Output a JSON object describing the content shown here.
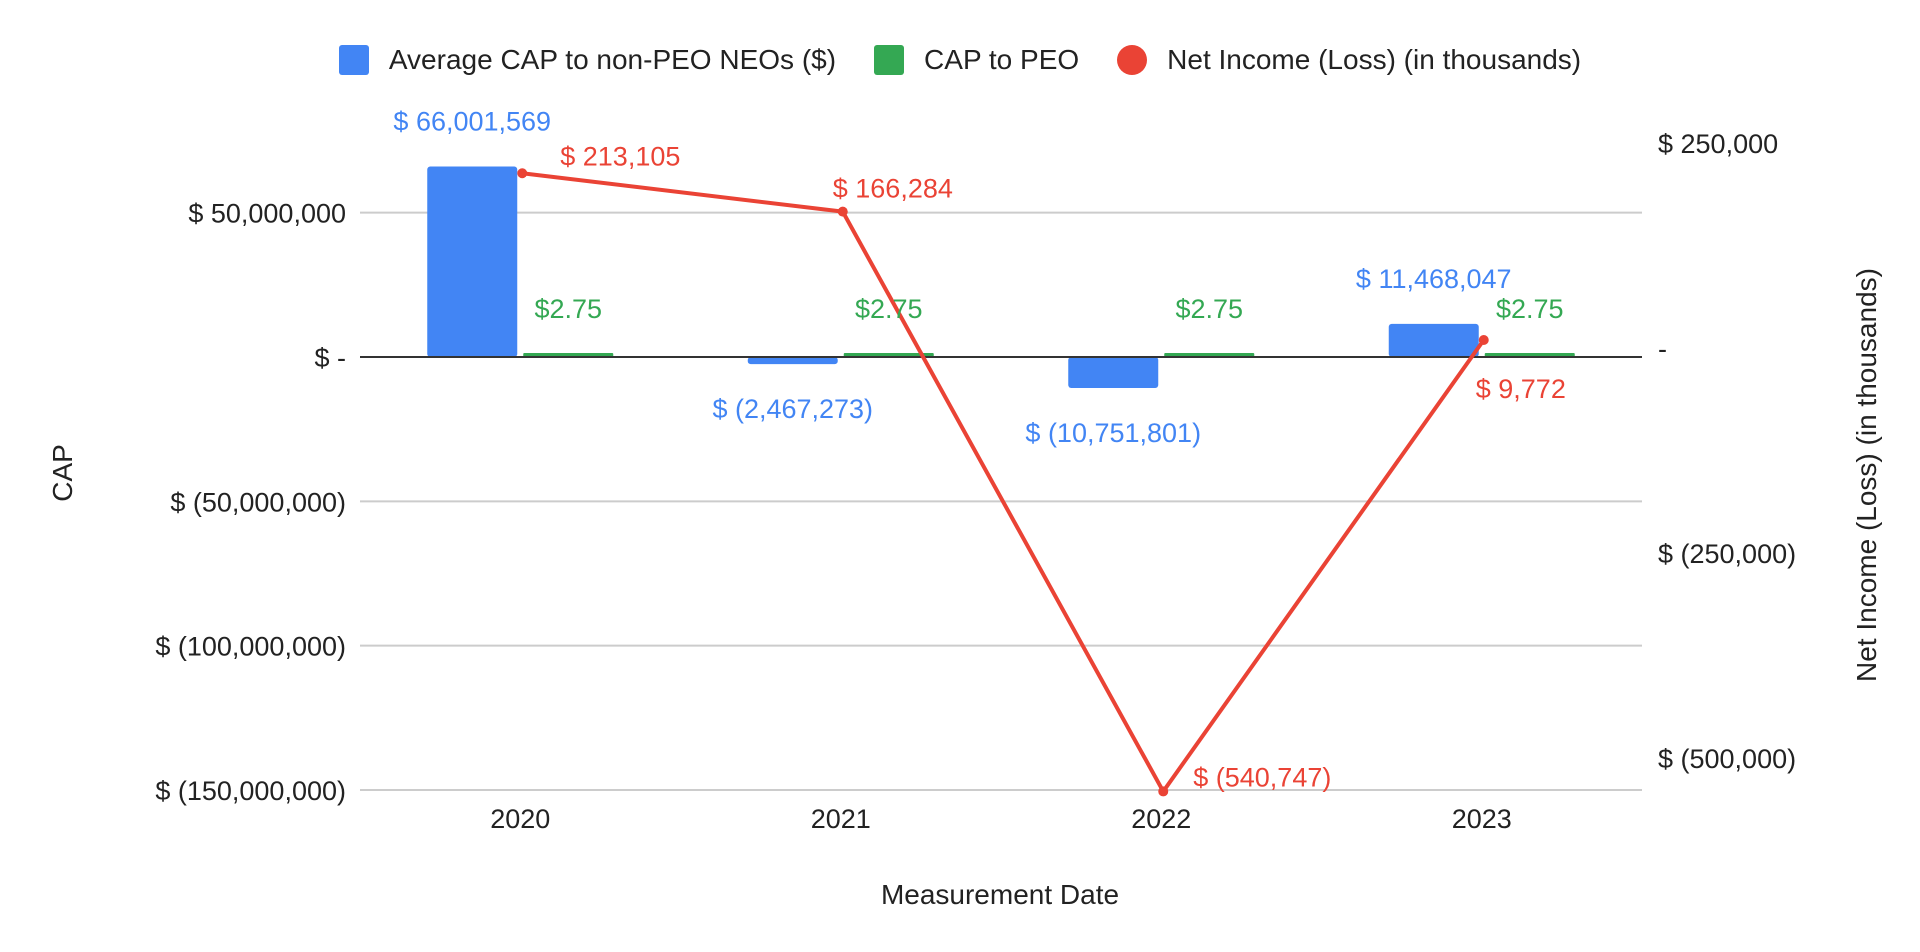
{
  "chart_data": {
    "type": "bar",
    "title": "",
    "xlabel": "Measurement Date",
    "ylabel": "CAP",
    "y2label": "Net Income (Loss) (in thousands)",
    "categories": [
      "2020",
      "2021",
      "2022",
      "2023"
    ],
    "ylim": [
      -150000000,
      75000000
    ],
    "yticks": [
      {
        "value": 50000000,
        "label": "$ 50,000,000"
      },
      {
        "value": 0,
        "label": "$ -"
      },
      {
        "value": -50000000,
        "label": "$ (50,000,000)"
      },
      {
        "value": -100000000,
        "label": "$ (100,000,000)"
      },
      {
        "value": -150000000,
        "label": "$ (150,000,000)"
      }
    ],
    "y2lim": [
      -560000,
      302000
    ],
    "y2ticks": [
      {
        "value": 250000,
        "label": "$ 250,000"
      },
      {
        "value": 0,
        "label": "-"
      },
      {
        "value": -250000,
        "label": "$ (250,000)"
      },
      {
        "value": -500000,
        "label": "$ (500,000)"
      }
    ],
    "legend_position": "top",
    "series": [
      {
        "name": "Average CAP to non-PEO NEOs ($)",
        "kind": "bar",
        "axis": "left",
        "color": "#4285F4",
        "values": [
          66001569,
          -2467273,
          -10751801,
          11468047
        ],
        "labels": [
          "$ 66,001,569",
          "$ (2,467,273)",
          "$ (10,751,801)",
          "$ 11,468,047"
        ]
      },
      {
        "name": "CAP to PEO",
        "kind": "bar",
        "axis": "left",
        "color": "#34A853",
        "values": [
          2.75,
          2.75,
          2.75,
          2.75
        ],
        "labels": [
          "$2.75",
          "$2.75",
          "$2.75",
          "$2.75"
        ]
      },
      {
        "name": "Net Income (Loss) (in thousands)",
        "kind": "line",
        "axis": "right",
        "color": "#EA4335",
        "values": [
          213105,
          166284,
          -540747,
          9772
        ],
        "labels": [
          "$ 213,105",
          "$ 166,284",
          "$ (540,747)",
          "$ 9,772"
        ]
      }
    ]
  }
}
